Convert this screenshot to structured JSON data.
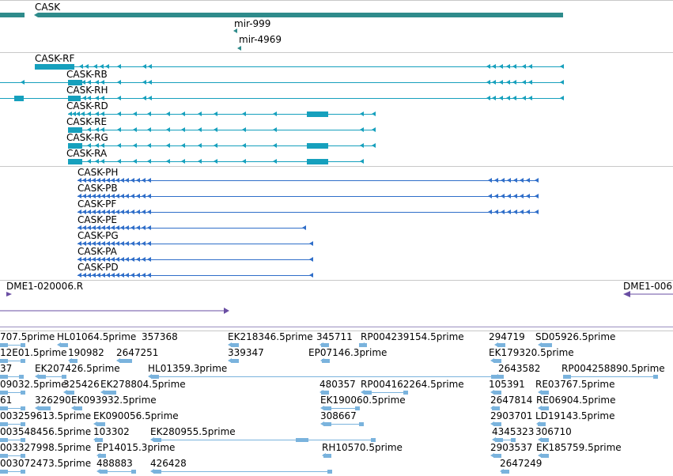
{
  "colors": {
    "gene": "#2e8b8b",
    "mirna": "#2e8b8b",
    "rna_transcript": "#16a0bd",
    "protein": "#2f6ec9",
    "reagent": "#6a4ea3",
    "est": "#7ab3dd",
    "divider": "#c8c8c8"
  },
  "tracks": {
    "gene": {
      "name": "CASK"
    },
    "mirnas": [
      {
        "name": "mir-999"
      },
      {
        "name": "mir-4969"
      }
    ],
    "transcripts": [
      {
        "name": "CASK-RF"
      },
      {
        "name": "CASK-RB"
      },
      {
        "name": "CASK-RH"
      },
      {
        "name": "CASK-RD"
      },
      {
        "name": "CASK-RE"
      },
      {
        "name": "CASK-RG"
      },
      {
        "name": "CASK-RA"
      }
    ],
    "proteins": [
      {
        "name": "CASK-PH"
      },
      {
        "name": "CASK-PB"
      },
      {
        "name": "CASK-PF"
      },
      {
        "name": "CASK-PE"
      },
      {
        "name": "CASK-PG"
      },
      {
        "name": "CASK-PA"
      },
      {
        "name": "CASK-PD"
      }
    ],
    "reagents": [
      {
        "name": "DME1-020006.R"
      },
      {
        "name": "DME1-006"
      }
    ],
    "ests": [
      [
        "707.5prime",
        "HL01064.5prime",
        "357368",
        "EK218346.5prime",
        "345711",
        "RP004239154.5prime",
        "294719",
        "SD05926.5prime"
      ],
      [
        "12E01.5prime",
        "190982",
        "2647251",
        "339347",
        "EP07146.3prime",
        "EK179320.5prime"
      ],
      [
        "37",
        "EK207426.5prime",
        "HL01359.3prime",
        "2643582",
        "RP004258890.5prime"
      ],
      [
        "09032.5prime",
        "325426",
        "EK278804.5prime",
        "480357",
        "RP004162264.5prime",
        "105391",
        "RE03767.5prime"
      ],
      [
        "61",
        "326290",
        "EK093932.5prime",
        "EK190060.5prime",
        "2647814",
        "RE06904.5prime"
      ],
      [
        "003259613.5prime",
        "EK090056.5prime",
        "308667",
        "2903701",
        "LD19143.5prime"
      ],
      [
        "003548456.5prime",
        "103302",
        "EK280955.5prime",
        "4345323",
        "306710"
      ],
      [
        "003327998.5prime",
        "EP14015.3prime",
        "RH10570.5prime",
        "2903537",
        "EK185759.5prime"
      ],
      [
        "003072473.5prime",
        "488883",
        "426428",
        "2647249"
      ]
    ]
  }
}
